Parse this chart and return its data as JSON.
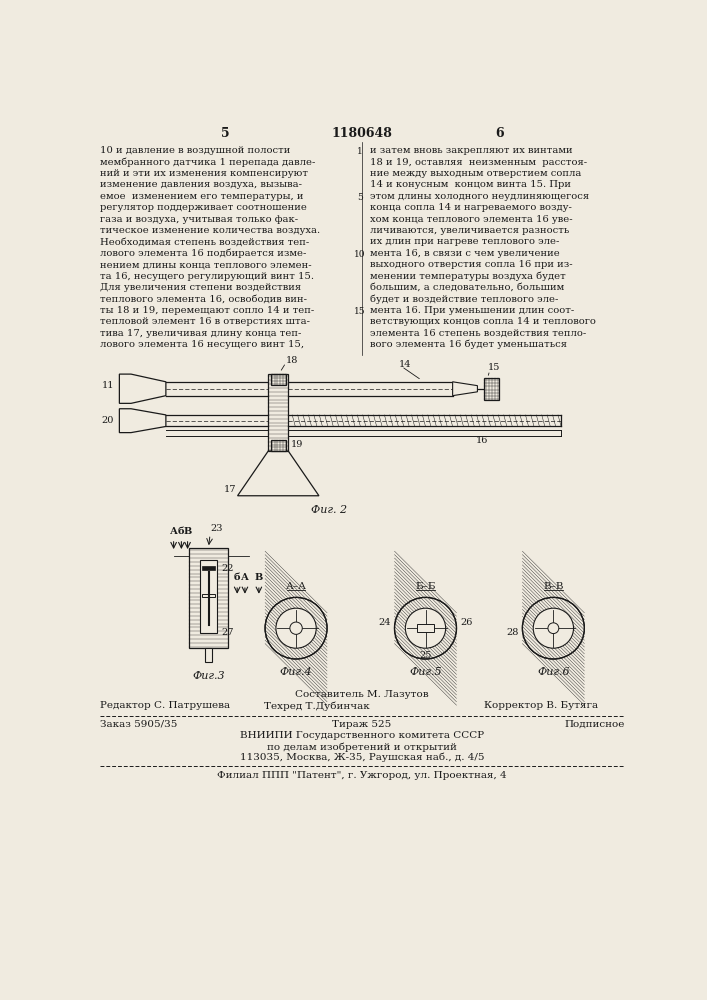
{
  "page_number_left": "5",
  "patent_number": "1180648",
  "page_number_right": "6",
  "col_left_text": [
    "10 и давление в воздушной полости",
    "мембранного датчика 1 перепада давле-",
    "ний и эти их изменения компенсируют",
    "изменение давления воздуха, вызыва-",
    "емое  изменением его температуры, и",
    "регулятор поддерживает соотношение",
    "газа и воздуха, учитывая только фак-",
    "тическое изменение количества воздуха.",
    "Необходимая степень воздействия теп-",
    "лового элемента 16 подбирается изме-",
    "нением длины конца теплового элемен-",
    "та 16, несущего регулирующий винт 15.",
    "Для увеличения степени воздействия",
    "теплового элемента 16, освободив вин-",
    "ты 18 и 19, перемещают сопло 14 и теп-",
    "тепловой элемент 16 в отверстиях шта-",
    "тива 17, увеличивая длину конца теп-",
    "лового элемента 16 несущего винт 15,"
  ],
  "col_right_text": [
    "и затем вновь закрепляют их винтами",
    "18 и 19, оставляя  неизменным  расстоя-",
    "ние между выходным отверстием сопла",
    "14 и конусным  концом винта 15. При",
    "этом длины холодного неудлиняющегося",
    "конца сопла 14 и нагреваемого возду-",
    "хом конца теплового элемента 16 уве-",
    "личиваются, увеличивается разность",
    "их длин при нагреве теплового эле-",
    "мента 16, в связи с чем увеличение",
    "выходного отверстия сопла 16 при из-",
    "менении температуры воздуха будет",
    "большим, а следовательно, большим",
    "будет и воздействие теплового эле-",
    "мента 16. При уменьшении длин соот-",
    "ветствующих концов сопла 14 и теплового",
    "элемента 16 степень воздействия тепло-",
    "вого элемента 16 будет уменьшаться"
  ],
  "footer_editor": "Редактор С. Патрушева",
  "footer_composer": "Составитель М. Лазутов",
  "footer_techred": "Техред Т.Дубинчак",
  "footer_corrector": "Корректор В. Бутяга",
  "footer_order": "Заказ 5905/35",
  "footer_tirazh": "Тираж 525",
  "footer_podpisnoe": "Подписное",
  "footer_vniipи": "ВНИИПИ Государственного комитета СССР",
  "footer_po": "по делам изобретений и открытий",
  "footer_address": "113035, Москва, Ж-35, Раушская наб., д. 4/5",
  "footer_filial": "Филиал ППП \"Патент\", г. Ужгород, ул. Проектная, 4",
  "bg_color": "#f0ebe0",
  "text_color": "#1a1a1a",
  "fig2_label": "Фиг. 2",
  "fig3_label": "Фиг.3",
  "fig4_label": "Фиг.4",
  "fig5_label": "Фиг.5",
  "fig6_label": "Фиг.6"
}
